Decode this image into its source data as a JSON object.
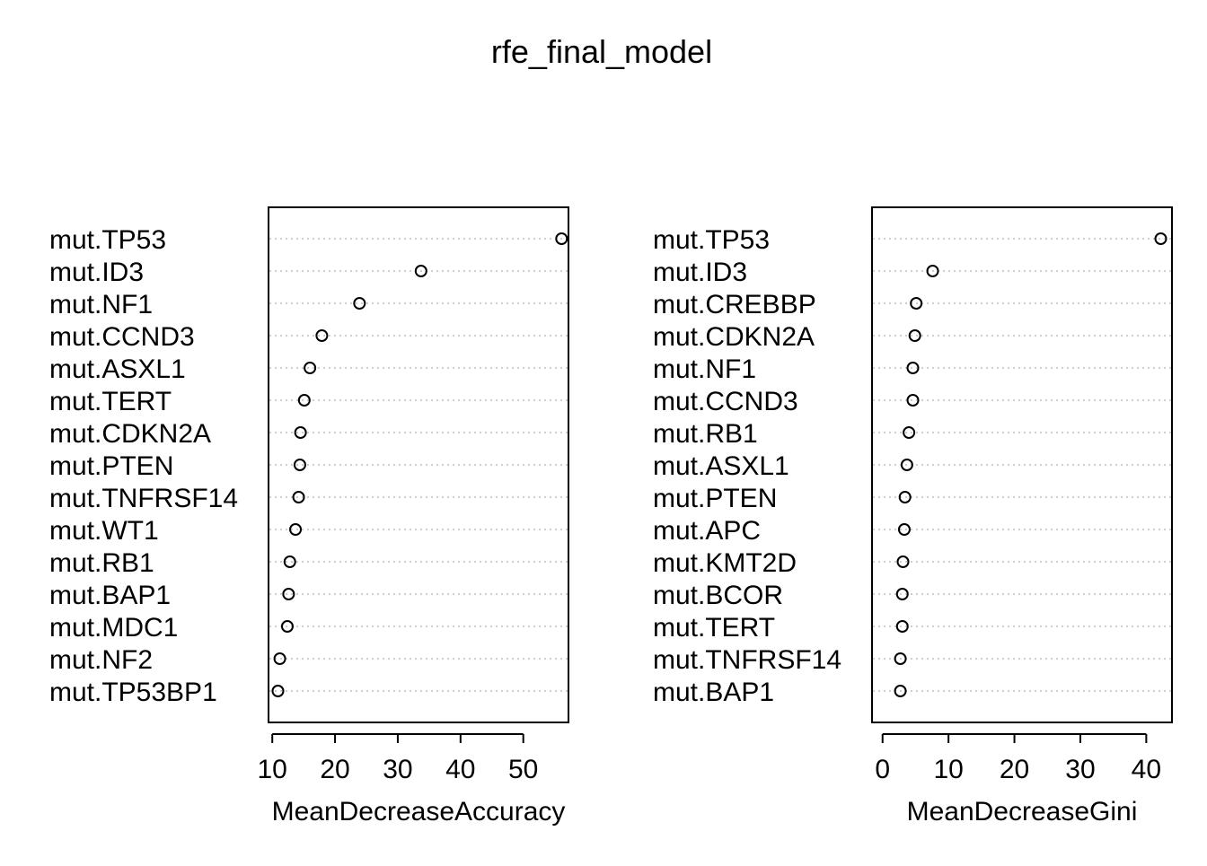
{
  "title": "rfe_final_model",
  "chart_data": [
    {
      "type": "scatter",
      "variant": "dotchart",
      "xlabel": "MeanDecreaseAccuracy",
      "xticks": [
        10,
        20,
        30,
        40,
        50
      ],
      "xlim": [
        9.4,
        57.2
      ],
      "grid": "dotted horizontal",
      "categories": [
        "mut.TP53",
        "mut.ID3",
        "mut.NF1",
        "mut.CCND3",
        "mut.ASXL1",
        "mut.TERT",
        "mut.CDKN2A",
        "mut.PTEN",
        "mut.TNFRSF14",
        "mut.WT1",
        "mut.RB1",
        "mut.BAP1",
        "mut.MDC1",
        "mut.NF2",
        "mut.TP53BP1"
      ],
      "values": [
        56.1,
        33.7,
        23.9,
        17.9,
        16.0,
        15.1,
        14.5,
        14.4,
        14.2,
        13.7,
        12.8,
        12.6,
        12.4,
        11.2,
        10.9
      ]
    },
    {
      "type": "scatter",
      "variant": "dotchart",
      "xlabel": "MeanDecreaseGini",
      "xticks": [
        0,
        10,
        20,
        30,
        40
      ],
      "xlim": [
        -1.6,
        43.9
      ],
      "grid": "dotted horizontal",
      "categories": [
        "mut.TP53",
        "mut.ID3",
        "mut.CREBBP",
        "mut.CDKN2A",
        "mut.NF1",
        "mut.CCND3",
        "mut.RB1",
        "mut.ASXL1",
        "mut.PTEN",
        "mut.APC",
        "mut.KMT2D",
        "mut.BCOR",
        "mut.TERT",
        "mut.TNFRSF14",
        "mut.BAP1"
      ],
      "values": [
        42.2,
        7.6,
        5.1,
        4.9,
        4.6,
        4.6,
        4.0,
        3.7,
        3.4,
        3.3,
        3.1,
        3.0,
        3.0,
        2.7,
        2.7
      ]
    }
  ]
}
